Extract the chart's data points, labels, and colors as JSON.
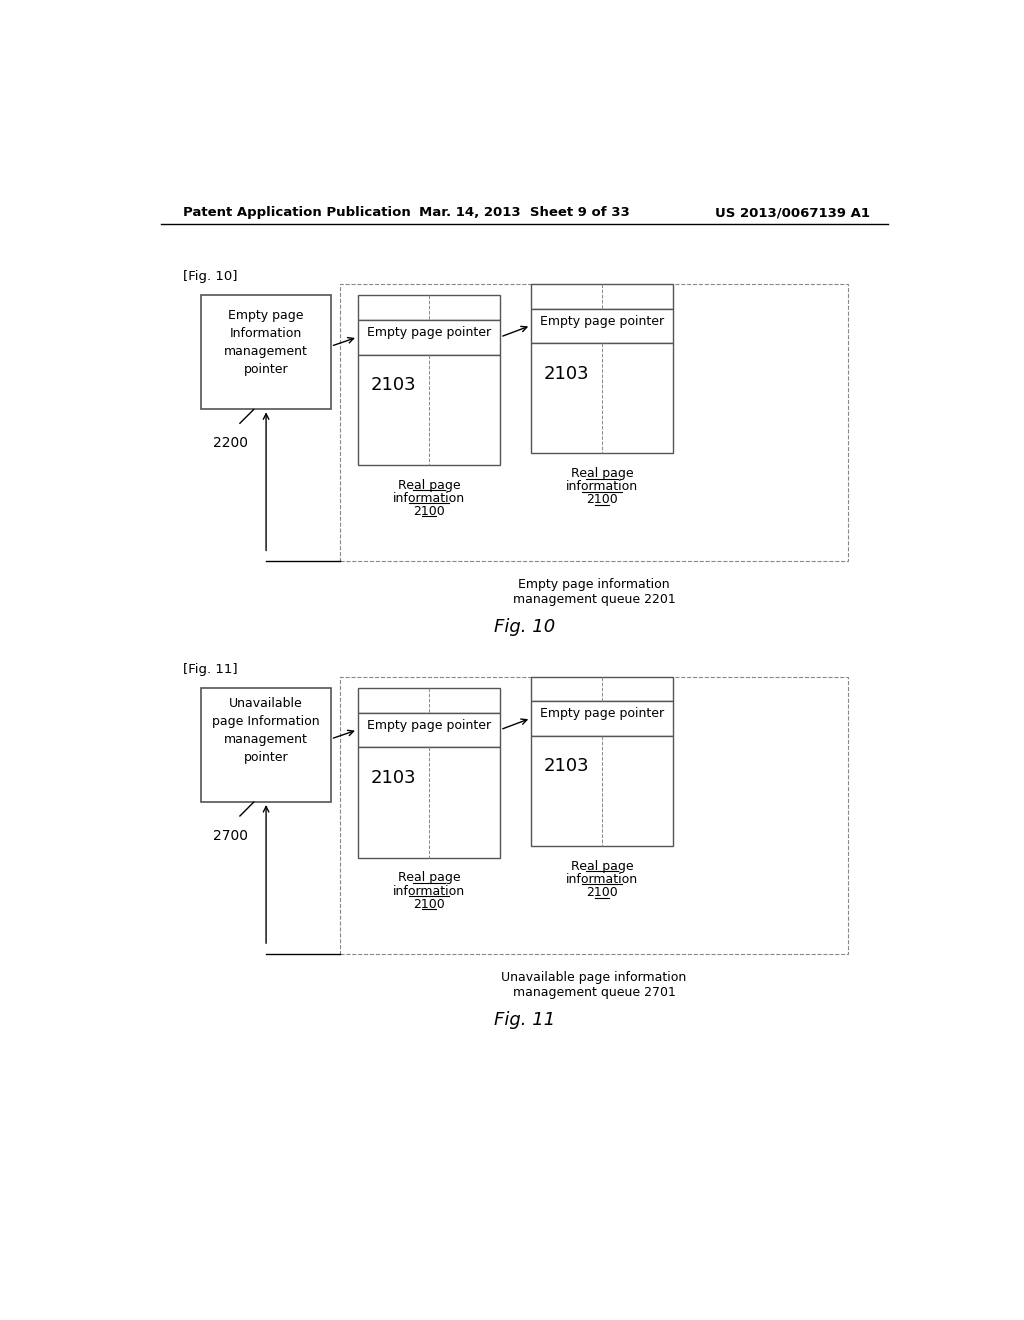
{
  "bg_color": "#ffffff",
  "header_left": "Patent Application Publication",
  "header_mid": "Mar. 14, 2013  Sheet 9 of 33",
  "header_right": "US 2013/0067139 A1",
  "fig10_label": "[Fig. 10]",
  "fig10_caption": "Fig. 10",
  "fig10_queue_label": "Empty page information\nmanagement queue 2201",
  "fig11_label": "[Fig. 11]",
  "fig11_caption": "Fig. 11",
  "fig11_queue_label": "Unavailable page information\nmanagement queue 2701",
  "fig10_box1_text": "Empty page\nInformation\nmanagement\npointer",
  "fig10_box1_id": "2200",
  "fig10_box2_header": "Empty page pointer",
  "fig10_box2_id": "2103",
  "fig10_box3_header": "Empty page pointer",
  "fig10_box3_id": "2103",
  "fig10_sub_label": "Real page\ninformation\n2100",
  "fig11_box1_text": "Unavailable\npage Information\nmanagement\npointer",
  "fig11_box1_id": "2700",
  "fig11_box2_header": "Empty page pointer",
  "fig11_box2_id": "2103",
  "fig11_box3_header": "Empty page pointer",
  "fig11_box3_id": "2103",
  "fig11_sub_label": "Real page\ninformation\n2100"
}
